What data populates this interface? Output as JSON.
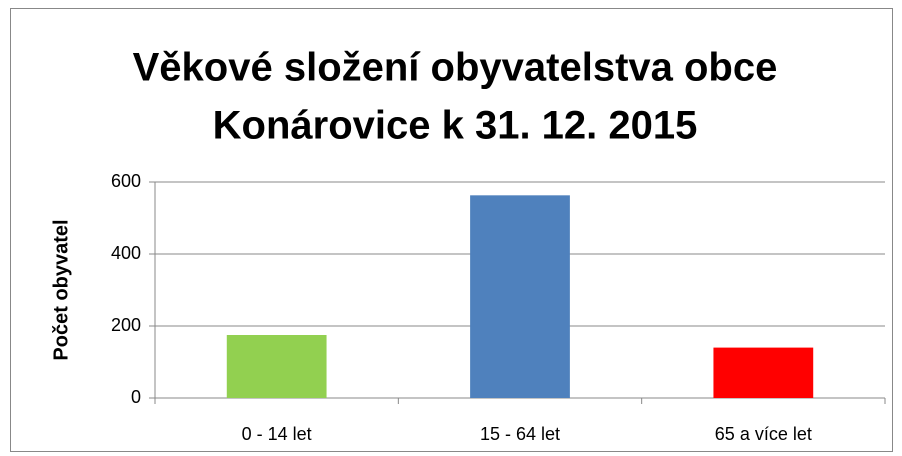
{
  "chart_data": {
    "type": "bar",
    "title": [
      "Věkové složení obyvatelstva obce",
      "Konárovice k 31. 12. 2015"
    ],
    "y_label": "Počet obyvatel",
    "categories": [
      "0 - 14 let",
      "15 - 64 let",
      "65 a více let"
    ],
    "values": [
      175,
      563,
      140
    ],
    "colors": [
      "#92d050",
      "#4f81bd",
      "#ff0000"
    ],
    "ylim": [
      0,
      600
    ],
    "yticks": [
      0,
      200,
      400,
      600
    ],
    "grid": true
  }
}
